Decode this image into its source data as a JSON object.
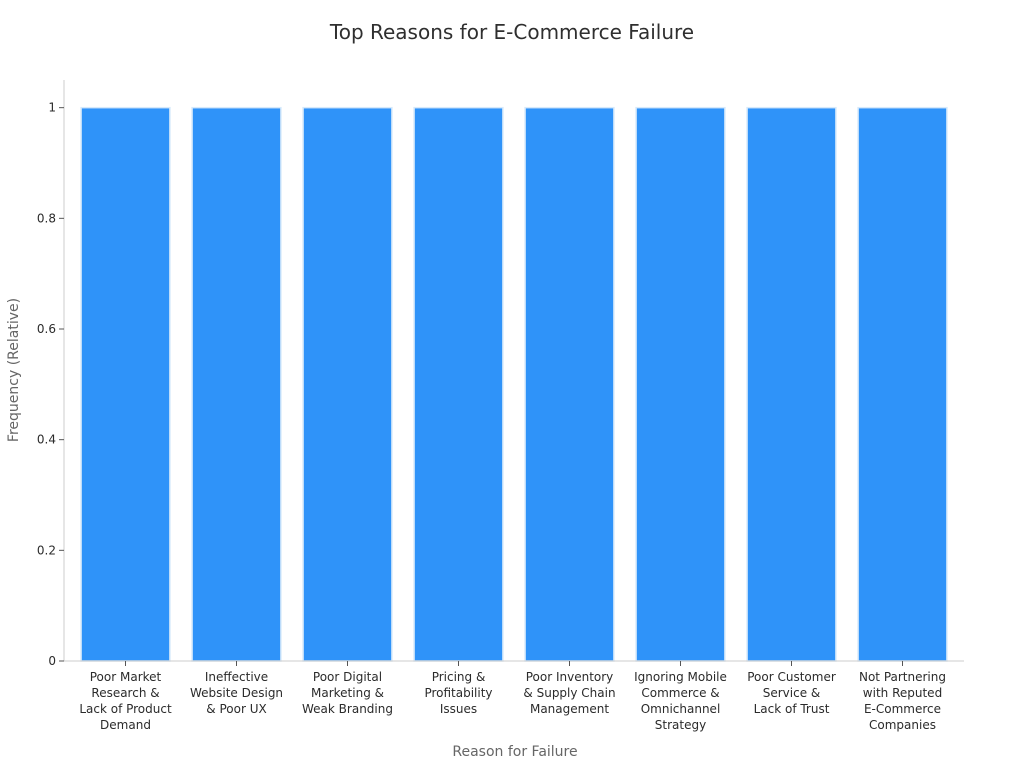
{
  "chart_data": {
    "type": "bar",
    "title": "Top Reasons for E-Commerce Failure",
    "xlabel": "Reason for Failure",
    "ylabel": "Frequency (Relative)",
    "categories": [
      [
        "Poor Market",
        "Research &",
        "Lack of Product",
        "Demand"
      ],
      [
        "Ineffective",
        "Website Design",
        "& Poor UX"
      ],
      [
        "Poor Digital",
        "Marketing &",
        "Weak Branding"
      ],
      [
        "Pricing &",
        "Profitability",
        "Issues"
      ],
      [
        "Poor Inventory",
        "& Supply Chain",
        "Management"
      ],
      [
        "Ignoring Mobile",
        "Commerce &",
        "Omnichannel",
        "Strategy"
      ],
      [
        "Poor Customer",
        "Service &",
        "Lack of Trust"
      ],
      [
        "Not Partnering",
        "with Reputed",
        "E-Commerce",
        "Companies"
      ]
    ],
    "values": [
      1,
      1,
      1,
      1,
      1,
      1,
      1,
      1
    ],
    "ylim": [
      0,
      1.05
    ],
    "yticks": [
      0,
      0.2,
      0.4,
      0.6,
      0.8,
      1
    ],
    "ytick_labels": [
      "0",
      "0.2",
      "0.4",
      "0.6",
      "0.8",
      "1"
    ],
    "grid": false,
    "bar_color": "#2f93f9",
    "bar_edge_color": "#d6e9fb",
    "axis_color": "#cccccc"
  }
}
